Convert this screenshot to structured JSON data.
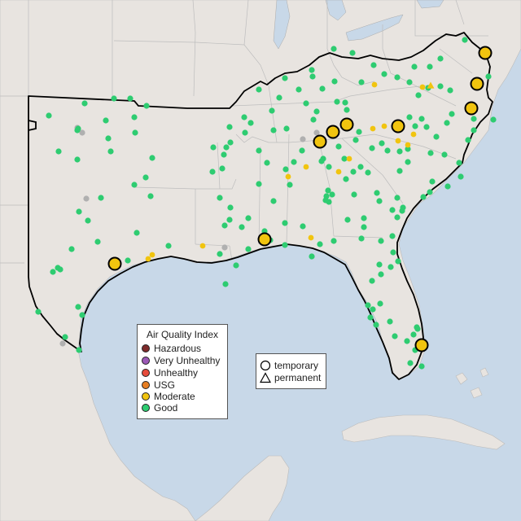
{
  "legend": {
    "title": "Air Quality Index",
    "categories": [
      {
        "label": "Hazardous",
        "color": "#7e2b2b"
      },
      {
        "label": "Very Unhealthy",
        "color": "#9b59b6"
      },
      {
        "label": "Unhealthy",
        "color": "#e74c3c"
      },
      {
        "label": "USG",
        "color": "#e67e22"
      },
      {
        "label": "Moderate",
        "color": "#f1c40f"
      },
      {
        "label": "Good",
        "color": "#2ecc71"
      }
    ]
  },
  "type_legend": {
    "temporary": "temporary",
    "permanent": "permanent"
  },
  "colors": {
    "water": "#c8d8e8",
    "land": "#e8e4e0",
    "region_outline": "#000000",
    "no_data": "#b0b0b0"
  },
  "monitors": {
    "temporary_moderate": [
      [
        596,
        65
      ],
      [
        586,
        103
      ],
      [
        579,
        133
      ],
      [
        489,
        155
      ],
      [
        426,
        153
      ],
      [
        409,
        162
      ],
      [
        393,
        174
      ],
      [
        325,
        294
      ],
      [
        141,
        324
      ],
      [
        518,
        424
      ]
    ],
    "moderate_small": [
      [
        460,
        104
      ],
      [
        519,
        107
      ],
      [
        458,
        158
      ],
      [
        472,
        155
      ],
      [
        508,
        165
      ],
      [
        489,
        173
      ],
      [
        501,
        178
      ],
      [
        376,
        205
      ],
      [
        416,
        211
      ],
      [
        354,
        217
      ],
      [
        429,
        195
      ],
      [
        249,
        302
      ],
      [
        187,
        313
      ],
      [
        182,
        318
      ],
      [
        382,
        292
      ]
    ],
    "good_small": [
      [
        60,
        142
      ],
      [
        104,
        127
      ],
      [
        140,
        121
      ],
      [
        160,
        121
      ],
      [
        180,
        130
      ],
      [
        130,
        148
      ],
      [
        95,
        160
      ],
      [
        96,
        158
      ],
      [
        165,
        144
      ],
      [
        166,
        163
      ],
      [
        133,
        170
      ],
      [
        72,
        186
      ],
      [
        95,
        196
      ],
      [
        136,
        186
      ],
      [
        187,
        194
      ],
      [
        179,
        218
      ],
      [
        165,
        227
      ],
      [
        185,
        241
      ],
      [
        124,
        243
      ],
      [
        97,
        260
      ],
      [
        108,
        271
      ],
      [
        168,
        286
      ],
      [
        120,
        297
      ],
      [
        88,
        306
      ],
      [
        71,
        329
      ],
      [
        74,
        331
      ],
      [
        65,
        334
      ],
      [
        157,
        320
      ],
      [
        47,
        383
      ],
      [
        96,
        377
      ],
      [
        101,
        387
      ],
      [
        80,
        414
      ],
      [
        97,
        430
      ],
      [
        207,
        302
      ],
      [
        270,
        312
      ],
      [
        290,
        326
      ],
      [
        277,
        349
      ],
      [
        305,
        306
      ],
      [
        297,
        279
      ],
      [
        276,
        277
      ],
      [
        270,
        243
      ],
      [
        282,
        270
      ],
      [
        273,
        207
      ],
      [
        275,
        190
      ],
      [
        278,
        181
      ],
      [
        283,
        175
      ],
      [
        308,
        151
      ],
      [
        301,
        163
      ],
      [
        300,
        144
      ],
      [
        282,
        156
      ],
      [
        262,
        181
      ],
      [
        261,
        211
      ],
      [
        318,
        110
      ],
      [
        350,
        96
      ],
      [
        343,
        120
      ],
      [
        334,
        136
      ],
      [
        336,
        160
      ],
      [
        352,
        158
      ],
      [
        371,
        185
      ],
      [
        361,
        199
      ],
      [
        318,
        185
      ],
      [
        328,
        200
      ],
      [
        351,
        208
      ],
      [
        318,
        226
      ],
      [
        356,
        227
      ],
      [
        336,
        247
      ],
      [
        350,
        274
      ],
      [
        372,
        278
      ],
      [
        305,
        268
      ],
      [
        325,
        284
      ],
      [
        283,
        255
      ],
      [
        332,
        295
      ],
      [
        350,
        301
      ],
      [
        383,
        315
      ],
      [
        393,
        300
      ],
      [
        410,
        296
      ],
      [
        400,
        246
      ],
      [
        404,
        248
      ],
      [
        401,
        241
      ],
      [
        403,
        234
      ],
      [
        408,
        239
      ],
      [
        427,
        270
      ],
      [
        447,
        268
      ],
      [
        444,
        293
      ],
      [
        435,
        239
      ],
      [
        463,
        237
      ],
      [
        452,
        212
      ],
      [
        434,
        211
      ],
      [
        443,
        205
      ],
      [
        425,
        220
      ],
      [
        404,
        205
      ],
      [
        395,
        198
      ],
      [
        397,
        195
      ],
      [
        423,
        195
      ],
      [
        437,
        172
      ],
      [
        441,
        162
      ],
      [
        385,
        147
      ],
      [
        389,
        137
      ],
      [
        414,
        125
      ],
      [
        426,
        135
      ],
      [
        424,
        126
      ],
      [
        411,
        100
      ],
      [
        384,
        94
      ],
      [
        367,
        110
      ],
      [
        383,
        86
      ],
      [
        410,
        60
      ],
      [
        433,
        65
      ],
      [
        459,
        80
      ],
      [
        444,
        101
      ],
      [
        472,
        91
      ],
      [
        488,
        95
      ],
      [
        503,
        101
      ],
      [
        509,
        82
      ],
      [
        528,
        82
      ],
      [
        541,
        72
      ],
      [
        541,
        106
      ],
      [
        553,
        111
      ],
      [
        571,
        49
      ],
      [
        600,
        94
      ],
      [
        606,
        147
      ],
      [
        582,
        146
      ],
      [
        582,
        160
      ],
      [
        549,
        151
      ],
      [
        555,
        140
      ],
      [
        518,
        146
      ],
      [
        503,
        144
      ],
      [
        510,
        155
      ],
      [
        536,
        168
      ],
      [
        529,
        188
      ],
      [
        546,
        190
      ],
      [
        575,
        172
      ],
      [
        564,
        200
      ],
      [
        566,
        217
      ],
      [
        550,
        229
      ],
      [
        528,
        236
      ],
      [
        501,
        183
      ],
      [
        491,
        186
      ],
      [
        469,
        176
      ],
      [
        476,
        185
      ],
      [
        491,
        210
      ],
      [
        501,
        199
      ],
      [
        482,
        258
      ],
      [
        494,
        259
      ],
      [
        488,
        243
      ],
      [
        488,
        267
      ],
      [
        495,
        255
      ],
      [
        468,
        296
      ],
      [
        482,
        290
      ],
      [
        483,
        310
      ],
      [
        480,
        328
      ],
      [
        489,
        321
      ],
      [
        466,
        325
      ],
      [
        457,
        345
      ],
      [
        468,
        337
      ],
      [
        452,
        375
      ],
      [
        458,
        380
      ],
      [
        467,
        373
      ],
      [
        455,
        390
      ],
      [
        462,
        399
      ],
      [
        479,
        395
      ],
      [
        485,
        413
      ],
      [
        500,
        419
      ],
      [
        508,
        411
      ],
      [
        512,
        402
      ],
      [
        510,
        430
      ],
      [
        504,
        446
      ],
      [
        518,
        450
      ],
      [
        513,
        404
      ],
      [
        526,
        108
      ],
      [
        524,
        156
      ],
      [
        531,
        223
      ],
      [
        520,
        242
      ],
      [
        466,
        247
      ],
      [
        447,
        279
      ],
      [
        426,
        158
      ],
      [
        416,
        180
      ],
      [
        457,
        182
      ],
      [
        514,
        117
      ],
      [
        396,
        109
      ],
      [
        376,
        127
      ]
    ],
    "nodata_small": [
      [
        95,
        157
      ],
      [
        106,
        244
      ],
      [
        372,
        171
      ],
      [
        389,
        163
      ],
      [
        276,
        304
      ],
      [
        77,
        422
      ],
      [
        412,
        166
      ],
      [
        101,
        163
      ]
    ],
    "permanent_moderate": [
      [
        529,
        105
      ]
    ]
  }
}
